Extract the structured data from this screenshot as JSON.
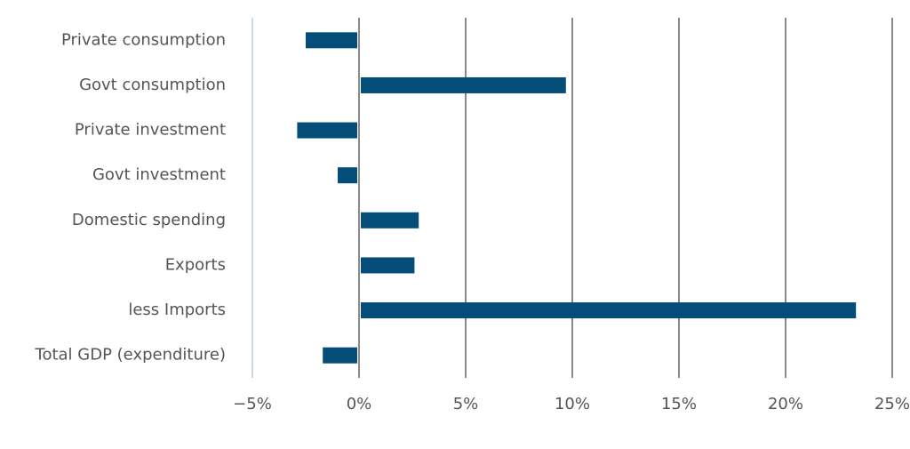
{
  "chart_data": {
    "type": "hbar",
    "categories": [
      "Private consumption",
      "Govt consumption",
      "Private investment",
      "Govt investment",
      "Domestic spending",
      "Exports",
      "less Imports",
      "Total GDP (expenditure)"
    ],
    "values": [
      -2.5,
      9.7,
      -2.9,
      -1.0,
      2.8,
      2.6,
      23.3,
      -1.7
    ],
    "color": "#034d78",
    "xlim": [
      -5,
      25
    ],
    "xticks": [
      {
        "value": -5,
        "label": "−5%"
      },
      {
        "value": 0,
        "label": "0%"
      },
      {
        "value": 5,
        "label": "5%"
      },
      {
        "value": 10,
        "label": "10%"
      },
      {
        "value": 15,
        "label": "15%"
      },
      {
        "value": 20,
        "label": "20%"
      },
      {
        "value": 25,
        "label": "25%"
      }
    ],
    "grid": true
  }
}
